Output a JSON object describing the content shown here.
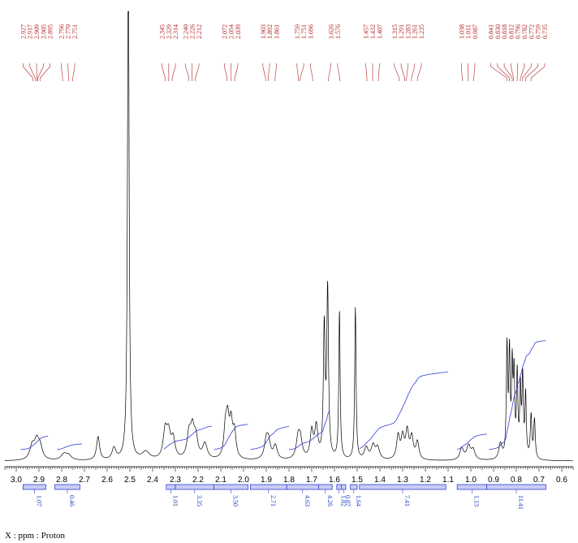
{
  "chart_data": {
    "type": "line",
    "title": "",
    "xlabel": "X : ppm : Proton",
    "ylabel": "",
    "xlim": [
      3.05,
      0.55
    ],
    "x_reversed": true,
    "x_ticks": [
      "3.0",
      "2.9",
      "2.8",
      "2.7",
      "2.6",
      "2.5",
      "2.4",
      "2.3",
      "2.2",
      "2.1",
      "2.0",
      "1.9",
      "1.8",
      "1.7",
      "1.6",
      "1.5",
      "1.4",
      "1.3",
      "1.2",
      "1.1",
      "1.0",
      "0.9",
      "0.8",
      "0.7",
      "0.6"
    ],
    "grid": false,
    "peak_labels": [
      "2.927",
      "2.917",
      "2.909",
      "2.905",
      "2.895",
      "2.796",
      "2.770",
      "2.751",
      "2.345",
      "2.329",
      "2.314",
      "2.240",
      "2.226",
      "2.212",
      "2.072",
      "2.054",
      "2.039",
      "1.903",
      "1.892",
      "1.861",
      "1.759",
      "1.751",
      "1.696",
      "1.626",
      "1.576",
      "1.457",
      "1.432",
      "1.407",
      "1.315",
      "1.291",
      "1.283",
      "1.261",
      "1.235",
      "1.038",
      "1.011",
      "0.987",
      "0.841",
      "0.830",
      "0.818",
      "0.812",
      "0.796",
      "0.782",
      "0.772",
      "0.759",
      "0.735"
    ],
    "integrals": [
      {
        "start": 2.97,
        "end": 2.87,
        "value": "1.07"
      },
      {
        "start": 2.83,
        "end": 2.72,
        "value": "0.46"
      },
      {
        "start": 2.34,
        "end": 2.3,
        "value": "1.01"
      },
      {
        "start": 2.3,
        "end": 2.13,
        "value": "3.35"
      },
      {
        "start": 2.13,
        "end": 1.98,
        "value": "3.50"
      },
      {
        "start": 1.97,
        "end": 1.81,
        "value": "2.71"
      },
      {
        "start": 1.81,
        "end": 1.67,
        "value": "4.63"
      },
      {
        "start": 1.67,
        "end": 1.61,
        "value": "4.26"
      },
      {
        "start": 1.59,
        "end": 1.57,
        "value": "1.82"
      },
      {
        "start": 1.57,
        "end": 1.55,
        "value": "0.87"
      },
      {
        "start": 1.53,
        "end": 1.5,
        "value": "1.64"
      },
      {
        "start": 1.49,
        "end": 1.11,
        "value": "7.41"
      },
      {
        "start": 1.06,
        "end": 0.93,
        "value": "1.13"
      },
      {
        "start": 0.93,
        "end": 0.67,
        "value": "11.41"
      }
    ],
    "peaks": [
      {
        "x": 2.93,
        "h": 0.035,
        "w": 0.012
      },
      {
        "x": 2.91,
        "h": 0.045,
        "w": 0.012
      },
      {
        "x": 2.895,
        "h": 0.03,
        "w": 0.012
      },
      {
        "x": 2.79,
        "h": 0.015,
        "w": 0.015
      },
      {
        "x": 2.77,
        "h": 0.012,
        "w": 0.015
      },
      {
        "x": 2.64,
        "h": 0.06,
        "w": 0.008
      },
      {
        "x": 2.57,
        "h": 0.03,
        "w": 0.01
      },
      {
        "x": 2.507,
        "h": 1.4,
        "w": 0.004
      },
      {
        "x": 2.43,
        "h": 0.02,
        "w": 0.02
      },
      {
        "x": 2.345,
        "h": 0.07,
        "w": 0.01
      },
      {
        "x": 2.33,
        "h": 0.06,
        "w": 0.01
      },
      {
        "x": 2.31,
        "h": 0.05,
        "w": 0.01
      },
      {
        "x": 2.24,
        "h": 0.06,
        "w": 0.01
      },
      {
        "x": 2.225,
        "h": 0.07,
        "w": 0.01
      },
      {
        "x": 2.21,
        "h": 0.05,
        "w": 0.01
      },
      {
        "x": 2.17,
        "h": 0.04,
        "w": 0.012
      },
      {
        "x": 2.08,
        "h": 0.07,
        "w": 0.008
      },
      {
        "x": 2.07,
        "h": 0.09,
        "w": 0.008
      },
      {
        "x": 2.055,
        "h": 0.085,
        "w": 0.008
      },
      {
        "x": 2.04,
        "h": 0.065,
        "w": 0.008
      },
      {
        "x": 1.9,
        "h": 0.045,
        "w": 0.01
      },
      {
        "x": 1.89,
        "h": 0.04,
        "w": 0.01
      },
      {
        "x": 1.86,
        "h": 0.035,
        "w": 0.01
      },
      {
        "x": 1.76,
        "h": 0.05,
        "w": 0.01
      },
      {
        "x": 1.75,
        "h": 0.045,
        "w": 0.01
      },
      {
        "x": 1.7,
        "h": 0.07,
        "w": 0.008
      },
      {
        "x": 1.68,
        "h": 0.08,
        "w": 0.008
      },
      {
        "x": 1.645,
        "h": 0.33,
        "w": 0.0045
      },
      {
        "x": 1.63,
        "h": 0.43,
        "w": 0.0045
      },
      {
        "x": 1.578,
        "h": 0.38,
        "w": 0.0035
      },
      {
        "x": 1.508,
        "h": 0.39,
        "w": 0.0035
      },
      {
        "x": 1.46,
        "h": 0.03,
        "w": 0.01
      },
      {
        "x": 1.43,
        "h": 0.035,
        "w": 0.01
      },
      {
        "x": 1.41,
        "h": 0.03,
        "w": 0.01
      },
      {
        "x": 1.32,
        "h": 0.06,
        "w": 0.008
      },
      {
        "x": 1.3,
        "h": 0.055,
        "w": 0.008
      },
      {
        "x": 1.28,
        "h": 0.07,
        "w": 0.008
      },
      {
        "x": 1.26,
        "h": 0.055,
        "w": 0.008
      },
      {
        "x": 1.235,
        "h": 0.045,
        "w": 0.008
      },
      {
        "x": 1.04,
        "h": 0.03,
        "w": 0.01
      },
      {
        "x": 1.01,
        "h": 0.035,
        "w": 0.01
      },
      {
        "x": 0.99,
        "h": 0.025,
        "w": 0.01
      },
      {
        "x": 0.87,
        "h": 0.04,
        "w": 0.008
      },
      {
        "x": 0.841,
        "h": 0.28,
        "w": 0.0035
      },
      {
        "x": 0.83,
        "h": 0.26,
        "w": 0.0035
      },
      {
        "x": 0.818,
        "h": 0.22,
        "w": 0.0035
      },
      {
        "x": 0.81,
        "h": 0.2,
        "w": 0.0035
      },
      {
        "x": 0.796,
        "h": 0.21,
        "w": 0.0035
      },
      {
        "x": 0.782,
        "h": 0.17,
        "w": 0.0035
      },
      {
        "x": 0.772,
        "h": 0.2,
        "w": 0.0035
      },
      {
        "x": 0.759,
        "h": 0.16,
        "w": 0.0035
      },
      {
        "x": 0.735,
        "h": 0.11,
        "w": 0.004
      },
      {
        "x": 0.72,
        "h": 0.1,
        "w": 0.004
      }
    ],
    "integral_curve_segments": [
      {
        "start": 2.98,
        "end": 2.86,
        "rise": 0.035
      },
      {
        "start": 2.82,
        "end": 2.71,
        "rise": 0.015
      },
      {
        "start": 2.35,
        "end": 2.14,
        "rise": 0.06
      },
      {
        "start": 2.13,
        "end": 1.98,
        "rise": 0.065
      },
      {
        "start": 1.97,
        "end": 1.8,
        "rise": 0.06
      },
      {
        "start": 1.8,
        "end": 1.62,
        "rise": 0.1
      },
      {
        "start": 1.49,
        "end": 1.1,
        "rise": 0.2
      },
      {
        "start": 1.06,
        "end": 0.93,
        "rise": 0.04
      },
      {
        "start": 0.92,
        "end": 0.67,
        "rise": 0.28
      }
    ]
  }
}
